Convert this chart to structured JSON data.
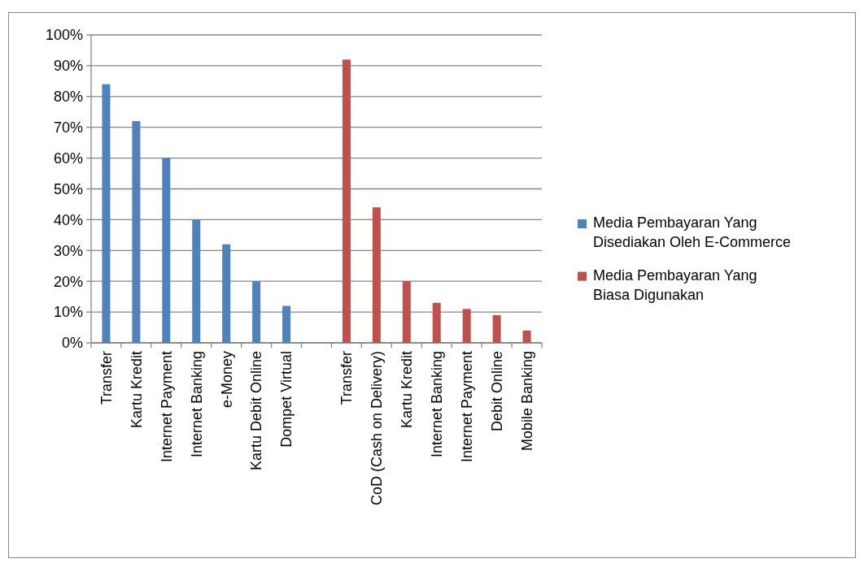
{
  "chart_data": {
    "type": "bar",
    "categories": [
      "Transfer",
      "Kartu Kredit",
      "Internet Payment",
      "Internet Banking",
      "e-Money",
      "Kartu Debit Online",
      "Dompet Virtual",
      null,
      "Transfer",
      "CoD (Cash on Delivery)",
      "Kartu Kredit",
      "Internet Banking",
      "Internet Payment",
      "Debit Online",
      "Mobile Banking"
    ],
    "series": [
      {
        "name": "Media Pembayaran Yang Disediakan Oleh E-Commerce",
        "color": "#4f81bd",
        "values": [
          84,
          72,
          60,
          40,
          32,
          20,
          12,
          null,
          null,
          null,
          null,
          null,
          null,
          null,
          null
        ]
      },
      {
        "name": "Media Pembayaran Yang Biasa Digunakan",
        "color": "#c0504d",
        "values": [
          null,
          null,
          null,
          null,
          null,
          null,
          null,
          null,
          92,
          44,
          20,
          13,
          11,
          9,
          4
        ]
      }
    ],
    "ylim": [
      0,
      100
    ],
    "yticks": [
      {
        "value": 0,
        "label": "0%"
      },
      {
        "value": 10,
        "label": "10%"
      },
      {
        "value": 20,
        "label": "20%"
      },
      {
        "value": 30,
        "label": "30%"
      },
      {
        "value": 40,
        "label": "40%"
      },
      {
        "value": 50,
        "label": "50%"
      },
      {
        "value": 60,
        "label": "60%"
      },
      {
        "value": 70,
        "label": "70%"
      },
      {
        "value": 80,
        "label": "80%"
      },
      {
        "value": 90,
        "label": "90%"
      },
      {
        "value": 100,
        "label": "100%"
      }
    ],
    "grid": "y",
    "legend": "right"
  }
}
